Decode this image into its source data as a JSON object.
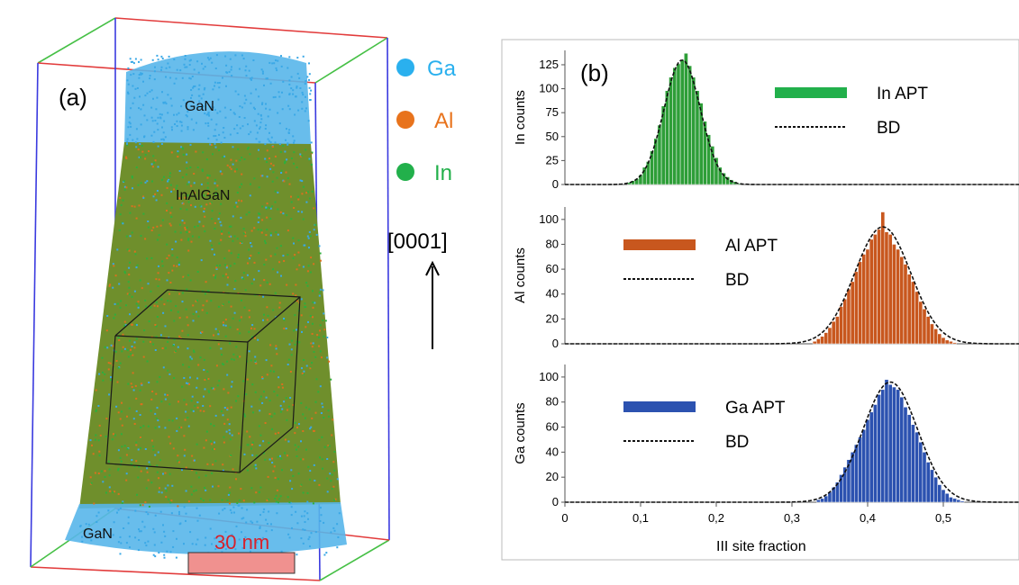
{
  "panel_a": {
    "label": "(a)",
    "regions": {
      "top": "GaN",
      "middle": "InAlGaN",
      "bottom": "GaN"
    },
    "scale_bar": "30 nm",
    "direction": "[0001]",
    "elements": [
      {
        "name": "Ga",
        "color": "#2ab0ee"
      },
      {
        "name": "Al",
        "color": "#e8731c"
      },
      {
        "name": "In",
        "color": "#22b04b"
      }
    ],
    "colors": {
      "ga": "#3aa8e6",
      "al": "#d9711e",
      "in": "#2fae3c",
      "box_red": "#e23b3b",
      "box_blue": "#3a3adf",
      "box_green": "#46c046"
    }
  },
  "panel_b": {
    "label": "(b)",
    "xlabel": "III site fraction",
    "xticks": [
      "0",
      "0,1",
      "0,2",
      "0,3",
      "0,4",
      "0,5"
    ]
  },
  "chart_data": [
    {
      "type": "bar",
      "ylabel": "In counts",
      "legend": [
        "In APT",
        "BD"
      ],
      "color": "#2e9e38",
      "xlim": [
        0,
        0.6
      ],
      "ylim": [
        0,
        140
      ],
      "yticks": [
        "0",
        "25",
        "50",
        "75",
        "100",
        "125"
      ],
      "yticks_values": [
        0,
        25,
        50,
        75,
        100,
        125
      ],
      "bd_mean": 0.155,
      "bd_sd": 0.024,
      "bd_peak": 130,
      "x": [
        0.085,
        0.09,
        0.095,
        0.1,
        0.105,
        0.11,
        0.115,
        0.12,
        0.125,
        0.13,
        0.135,
        0.14,
        0.145,
        0.15,
        0.155,
        0.16,
        0.165,
        0.17,
        0.175,
        0.18,
        0.185,
        0.19,
        0.195,
        0.2,
        0.205,
        0.21,
        0.215,
        0.22,
        0.225,
        0.23
      ],
      "values": [
        2,
        4,
        6,
        10,
        18,
        24,
        35,
        48,
        62,
        82,
        98,
        112,
        122,
        126,
        130,
        137,
        124,
        112,
        98,
        85,
        66,
        52,
        40,
        28,
        18,
        12,
        8,
        5,
        3,
        1
      ]
    },
    {
      "type": "bar",
      "ylabel": "Al counts",
      "legend": [
        "Al APT",
        "BD"
      ],
      "color": "#c8571e",
      "xlim": [
        0,
        0.6
      ],
      "ylim": [
        0,
        110
      ],
      "yticks": [
        "0",
        "20",
        "40",
        "60",
        "80",
        "100"
      ],
      "yticks_values": [
        0,
        20,
        40,
        60,
        80,
        100
      ],
      "bd_mean": 0.42,
      "bd_sd": 0.037,
      "bd_peak": 94,
      "x": [
        0.33,
        0.335,
        0.34,
        0.345,
        0.35,
        0.355,
        0.36,
        0.365,
        0.37,
        0.375,
        0.38,
        0.385,
        0.39,
        0.395,
        0.4,
        0.405,
        0.41,
        0.415,
        0.42,
        0.425,
        0.43,
        0.435,
        0.44,
        0.445,
        0.45,
        0.455,
        0.46,
        0.465,
        0.47,
        0.475,
        0.48,
        0.485,
        0.49,
        0.495,
        0.5,
        0.505,
        0.51,
        0.515
      ],
      "values": [
        2,
        4,
        6,
        9,
        13,
        18,
        22,
        30,
        36,
        44,
        50,
        58,
        66,
        72,
        76,
        84,
        88,
        92,
        106,
        90,
        88,
        80,
        76,
        70,
        64,
        56,
        50,
        42,
        34,
        28,
        22,
        16,
        12,
        8,
        5,
        3,
        2,
        1
      ]
    },
    {
      "type": "bar",
      "ylabel": "Ga counts",
      "legend": [
        "Ga APT",
        "BD"
      ],
      "color": "#2c52b0",
      "xlim": [
        0,
        0.6
      ],
      "ylim": [
        0,
        110
      ],
      "yticks": [
        "0",
        "20",
        "40",
        "60",
        "80",
        "100"
      ],
      "yticks_values": [
        0,
        20,
        40,
        60,
        80,
        100
      ],
      "bd_mean": 0.43,
      "bd_sd": 0.036,
      "bd_peak": 96,
      "x": [
        0.335,
        0.34,
        0.345,
        0.35,
        0.355,
        0.36,
        0.365,
        0.37,
        0.375,
        0.38,
        0.385,
        0.39,
        0.395,
        0.4,
        0.405,
        0.41,
        0.415,
        0.42,
        0.425,
        0.43,
        0.435,
        0.44,
        0.445,
        0.45,
        0.455,
        0.46,
        0.465,
        0.47,
        0.475,
        0.48,
        0.485,
        0.49,
        0.495,
        0.5,
        0.505,
        0.51,
        0.515,
        0.52,
        0.525
      ],
      "values": [
        2,
        3,
        5,
        8,
        12,
        16,
        22,
        28,
        34,
        40,
        46,
        52,
        58,
        66,
        72,
        78,
        86,
        90,
        98,
        94,
        92,
        90,
        84,
        76,
        70,
        62,
        56,
        48,
        40,
        32,
        26,
        20,
        14,
        10,
        7,
        4,
        3,
        2,
        1
      ]
    }
  ]
}
